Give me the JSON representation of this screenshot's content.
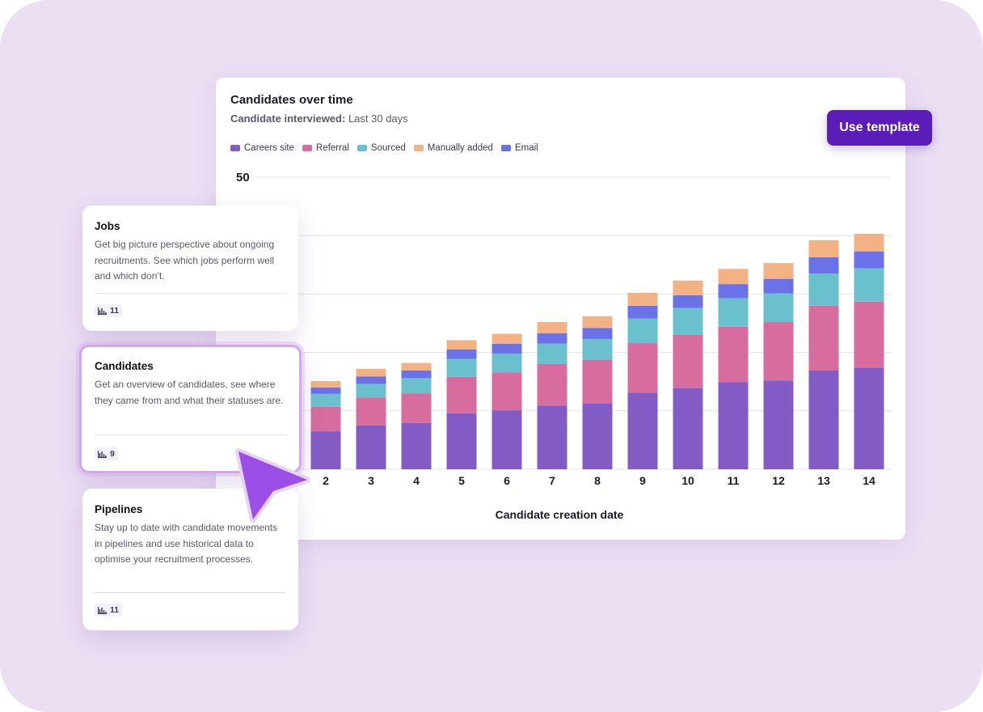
{
  "chart_card": {
    "title": "Candidates over time",
    "subtitle_label": "Candidate interviewed:",
    "subtitle_value": "Last 30 days",
    "use_template_label": "Use template"
  },
  "chart_data": {
    "type": "bar",
    "stacked": true,
    "categories": [
      "2",
      "3",
      "4",
      "5",
      "6",
      "7",
      "8",
      "9",
      "10",
      "11",
      "12",
      "13",
      "14"
    ],
    "series": [
      {
        "name": "Careers site",
        "color": "#835bc4",
        "values": [
          6.5,
          7.5,
          7.9,
          9.6,
          10.1,
          10.9,
          11.3,
          13.1,
          13.9,
          14.9,
          15.2,
          16.9,
          17.4
        ]
      },
      {
        "name": "Referral",
        "color": "#d66d9e",
        "values": [
          4.2,
          4.8,
          5.1,
          6.2,
          6.5,
          7.1,
          7.4,
          8.5,
          9.1,
          9.5,
          10.0,
          11.1,
          11.3
        ]
      },
      {
        "name": "Sourced",
        "color": "#6bc0ce",
        "values": [
          2.2,
          2.3,
          2.6,
          3.1,
          3.2,
          3.5,
          3.6,
          4.2,
          4.6,
          4.9,
          4.9,
          5.5,
          5.7
        ]
      },
      {
        "name": "Email",
        "color": "#6b71e6",
        "values": [
          1.1,
          1.3,
          1.3,
          1.6,
          1.7,
          1.8,
          1.9,
          2.2,
          2.2,
          2.4,
          2.5,
          2.8,
          2.9
        ]
      },
      {
        "name": "Manually added",
        "color": "#f3b283",
        "values": [
          1.1,
          1.3,
          1.3,
          1.6,
          1.7,
          1.9,
          2.0,
          2.2,
          2.5,
          2.6,
          2.7,
          2.9,
          3.0
        ]
      }
    ],
    "legend": [
      "Careers site",
      "Referral",
      "Sourced",
      "Manually added",
      "Email"
    ],
    "legend_placement": "top-left",
    "xlabel": "Candidate creation date",
    "ylabel": "",
    "ylim": [
      0,
      50
    ],
    "ytick_label": "50",
    "grid": true
  },
  "template_cards": [
    {
      "title": "Jobs",
      "description": "Get big picture perspective about ongoing recruitments. See which jobs perform well and which don’t.",
      "count": "11",
      "selected": false
    },
    {
      "title": "Candidates",
      "description": "Get an overview of candidates, see where they came from and what their statuses are.",
      "count": "9",
      "selected": true
    },
    {
      "title": "Pipelines",
      "description": "Stay up to date with candidate movements in pipelines and use historical data to optimise your recruitment processes.",
      "count": "11",
      "selected": false
    }
  ],
  "colors": {
    "accent": "#5b1db8",
    "background": "#ebdff4",
    "cursor": "#9b4fe6"
  }
}
